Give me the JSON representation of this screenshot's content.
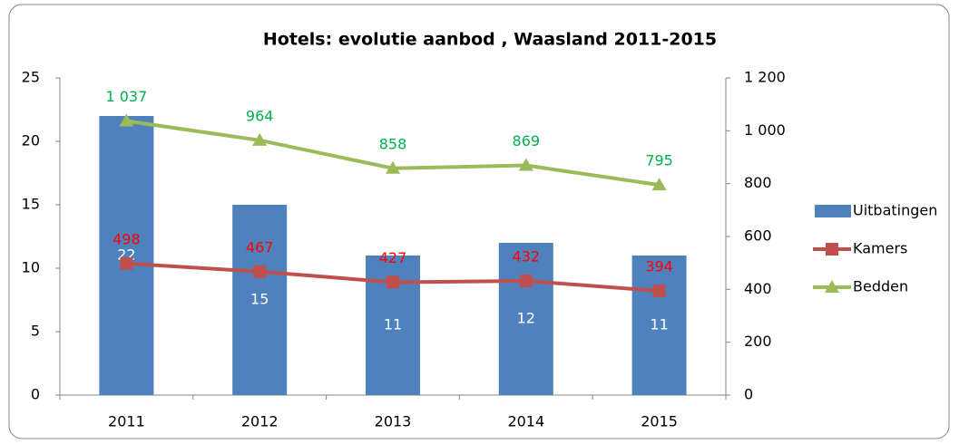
{
  "chart_data": {
    "type": "bar",
    "title": "Hotels: evolutie aanbod , Waasland 2011-2015",
    "categories": [
      "2011",
      "2012",
      "2013",
      "2014",
      "2015"
    ],
    "series": [
      {
        "name": "Uitbatingen",
        "type": "bar",
        "color": "#4f81bd",
        "label_color": "#ffffff",
        "values": [
          22,
          15,
          11,
          12,
          11
        ]
      },
      {
        "name": "Kamers",
        "type": "line",
        "axis": "y2",
        "marker": "square",
        "color": "#c0504d",
        "label_color": "#ff0000",
        "values": [
          498,
          467,
          427,
          432,
          394
        ]
      },
      {
        "name": "Bedden",
        "type": "line",
        "axis": "y2",
        "marker": "triangle",
        "color": "#9bbb59",
        "label_color": "#00b050",
        "values": [
          1037,
          964,
          858,
          869,
          795
        ],
        "value_labels": [
          "1 037",
          "964",
          "858",
          "869",
          "795"
        ]
      }
    ],
    "ylim": [
      0,
      25
    ],
    "yticks": [
      0,
      5,
      10,
      15,
      20,
      25
    ],
    "y2lim": [
      0,
      1200
    ],
    "y2ticks": [
      0,
      200,
      400,
      600,
      800,
      {
        "value": 1000,
        "label": "1 000"
      },
      {
        "value": 1200,
        "label": "1 200"
      }
    ],
    "grid": false,
    "legend": "right"
  }
}
